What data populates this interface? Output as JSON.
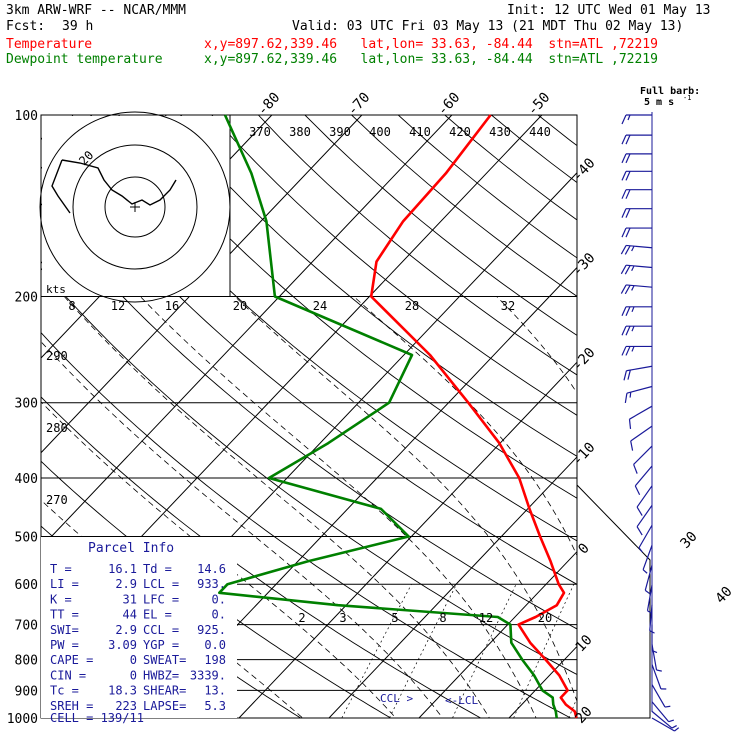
{
  "header": {
    "model": "3km ARW-WRF -- NCAR/MMM",
    "init": "Init: 12 UTC Wed 01 May 13",
    "fcst_label": "Fcst:",
    "fcst_hours": "39 h",
    "valid": "Valid: 03 UTC Fri 03 May 13 (21 MDT Thu 02 May 13)",
    "temp_label": "Temperature",
    "temp_info": "x,y=897.62,339.46   lat,lon= 33.63, -84.44  stn=ATL ,72219",
    "dew_label": "Dewpoint temperature",
    "dew_info": "x,y=897.62,339.46   lat,lon= 33.63, -84.44  stn=ATL ,72219",
    "temp_color": "#ff0000",
    "dew_color": "#008000"
  },
  "chart_data": {
    "type": "line",
    "title": "",
    "xlabel": "",
    "ylabel": "",
    "y_scale": "log",
    "pressure_ticks": [
      100,
      200,
      300,
      400,
      500,
      600,
      700,
      800,
      900,
      1000
    ],
    "skewed_isotherm_labels": [
      "-80",
      "-70",
      "-60",
      "-50",
      "-40",
      "-30",
      "-20",
      "-10",
      "0",
      "10",
      "20",
      "30",
      "40"
    ],
    "theta_labels": [
      "370",
      "380",
      "390",
      "400",
      "410",
      "420",
      "430",
      "440"
    ],
    "theta_left_labels": [
      "290",
      "280",
      "270"
    ],
    "mixing_ratio_labels": [
      "2",
      "3",
      "5",
      "8",
      "12",
      "20"
    ],
    "hodo_speed_labels": [
      "8",
      "12",
      "16",
      "20",
      "24",
      "28",
      "32"
    ],
    "hodo_unit": "kts",
    "hodo_ring_label": "20",
    "series": [
      {
        "name": "Temperature",
        "color": "#ff0000",
        "points": [
          {
            "p": 1000,
            "t": 17.5
          },
          {
            "p": 975,
            "t": 16.6
          },
          {
            "p": 950,
            "t": 14.9
          },
          {
            "p": 925,
            "t": 13.6
          },
          {
            "p": 900,
            "t": 13.6
          },
          {
            "p": 850,
            "t": 11.1
          },
          {
            "p": 800,
            "t": 7.9
          },
          {
            "p": 750,
            "t": 4.4
          },
          {
            "p": 700,
            "t": 1.2
          },
          {
            "p": 680,
            "t": 2.3
          },
          {
            "p": 650,
            "t": 3.4
          },
          {
            "p": 620,
            "t": 2.9
          },
          {
            "p": 600,
            "t": 1.4
          },
          {
            "p": 550,
            "t": -1.9
          },
          {
            "p": 500,
            "t": -5.7
          },
          {
            "p": 450,
            "t": -9.8
          },
          {
            "p": 400,
            "t": -14.2
          },
          {
            "p": 350,
            "t": -20.1
          },
          {
            "p": 300,
            "t": -27.8
          },
          {
            "p": 250,
            "t": -37.1
          },
          {
            "p": 200,
            "t": -49.8
          },
          {
            "p": 175,
            "t": -52.9
          },
          {
            "p": 150,
            "t": -54.2
          },
          {
            "p": 125,
            "t": -54.5
          },
          {
            "p": 100,
            "t": -55.7
          }
        ]
      },
      {
        "name": "Dewpoint temperature",
        "color": "#008000",
        "points": [
          {
            "p": 1000,
            "t": 15.3
          },
          {
            "p": 975,
            "t": 14.5
          },
          {
            "p": 950,
            "t": 13.5
          },
          {
            "p": 925,
            "t": 12.7
          },
          {
            "p": 900,
            "t": 10.8
          },
          {
            "p": 850,
            "t": 8.3
          },
          {
            "p": 800,
            "t": 5.3
          },
          {
            "p": 750,
            "t": 2.3
          },
          {
            "p": 700,
            "t": 0.3
          },
          {
            "p": 680,
            "t": -1.9
          },
          {
            "p": 650,
            "t": -20.9
          },
          {
            "p": 620,
            "t": -35.4
          },
          {
            "p": 600,
            "t": -35.4
          },
          {
            "p": 550,
            "t": -28.9
          },
          {
            "p": 500,
            "t": -20.3
          },
          {
            "p": 450,
            "t": -26.3
          },
          {
            "p": 400,
            "t": -42.0
          },
          {
            "p": 350,
            "t": -39.1
          },
          {
            "p": 300,
            "t": -36.6
          },
          {
            "p": 250,
            "t": -39.1
          },
          {
            "p": 200,
            "t": -60.5
          },
          {
            "p": 150,
            "t": -69.4
          },
          {
            "p": 125,
            "t": -76.1
          },
          {
            "p": 100,
            "t": -85.2
          }
        ]
      }
    ],
    "parcel_markers": {
      "ccl": "CCL",
      "lcl": "<-LCL"
    }
  },
  "parcel_info": {
    "title": "Parcel Info",
    "rows": [
      [
        "T  =",
        "16.1",
        "Td =",
        "14.6"
      ],
      [
        "LI =",
        "2.9",
        "LCL =",
        "933."
      ],
      [
        "K  =",
        "31",
        "LFC =",
        "0."
      ],
      [
        "TT =",
        "44",
        "EL  =",
        "0."
      ],
      [
        "SWI=",
        "2.9",
        "CCL =",
        "925."
      ],
      [
        "PW =",
        "3.09",
        "YGP =",
        "0.0"
      ],
      [
        "CAPE =",
        "0",
        "SWEAT=",
        "198"
      ],
      [
        "CIN  =",
        "0",
        "HWBZ=",
        "3339."
      ],
      [
        "Tc   =",
        "18.3",
        "SHEAR=",
        "13."
      ],
      [
        "SREH =",
        "223",
        "LAPSE=",
        "5.3"
      ]
    ],
    "cell": "CELL = 139/11"
  },
  "barbs": {
    "legend_title": "Full barb:",
    "legend_value": "5 m s",
    "legend_exp": "-1",
    "color": "#1a1a9a",
    "levels": [
      {
        "p": 100,
        "dir": 270,
        "spd": 15
      },
      {
        "p": 108,
        "dir": 270,
        "spd": 20
      },
      {
        "p": 116,
        "dir": 270,
        "spd": 20
      },
      {
        "p": 124,
        "dir": 270,
        "spd": 20
      },
      {
        "p": 133,
        "dir": 270,
        "spd": 20
      },
      {
        "p": 143,
        "dir": 270,
        "spd": 20
      },
      {
        "p": 154,
        "dir": 270,
        "spd": 20
      },
      {
        "p": 166,
        "dir": 275,
        "spd": 25
      },
      {
        "p": 179,
        "dir": 275,
        "spd": 25
      },
      {
        "p": 193,
        "dir": 275,
        "spd": 25
      },
      {
        "p": 208,
        "dir": 270,
        "spd": 25
      },
      {
        "p": 224,
        "dir": 270,
        "spd": 25
      },
      {
        "p": 242,
        "dir": 270,
        "spd": 25
      },
      {
        "p": 261,
        "dir": 260,
        "spd": 20
      },
      {
        "p": 282,
        "dir": 255,
        "spd": 15
      },
      {
        "p": 304,
        "dir": 240,
        "spd": 10
      },
      {
        "p": 328,
        "dir": 235,
        "spd": 10
      },
      {
        "p": 354,
        "dir": 225,
        "spd": 10
      },
      {
        "p": 382,
        "dir": 220,
        "spd": 10
      },
      {
        "p": 412,
        "dir": 215,
        "spd": 10
      },
      {
        "p": 444,
        "dir": 215,
        "spd": 10
      },
      {
        "p": 479,
        "dir": 210,
        "spd": 5
      },
      {
        "p": 517,
        "dir": 200,
        "spd": 5
      },
      {
        "p": 558,
        "dir": 195,
        "spd": 5
      },
      {
        "p": 602,
        "dir": 190,
        "spd": 5
      },
      {
        "p": 649,
        "dir": 185,
        "spd": 5
      },
      {
        "p": 700,
        "dir": 180,
        "spd": 5
      },
      {
        "p": 755,
        "dir": 170,
        "spd": 5
      },
      {
        "p": 815,
        "dir": 160,
        "spd": 5
      },
      {
        "p": 880,
        "dir": 150,
        "spd": 5
      },
      {
        "p": 940,
        "dir": 140,
        "spd": 5
      },
      {
        "p": 975,
        "dir": 130,
        "spd": 5
      },
      {
        "p": 1000,
        "dir": 120,
        "spd": 5
      }
    ]
  }
}
